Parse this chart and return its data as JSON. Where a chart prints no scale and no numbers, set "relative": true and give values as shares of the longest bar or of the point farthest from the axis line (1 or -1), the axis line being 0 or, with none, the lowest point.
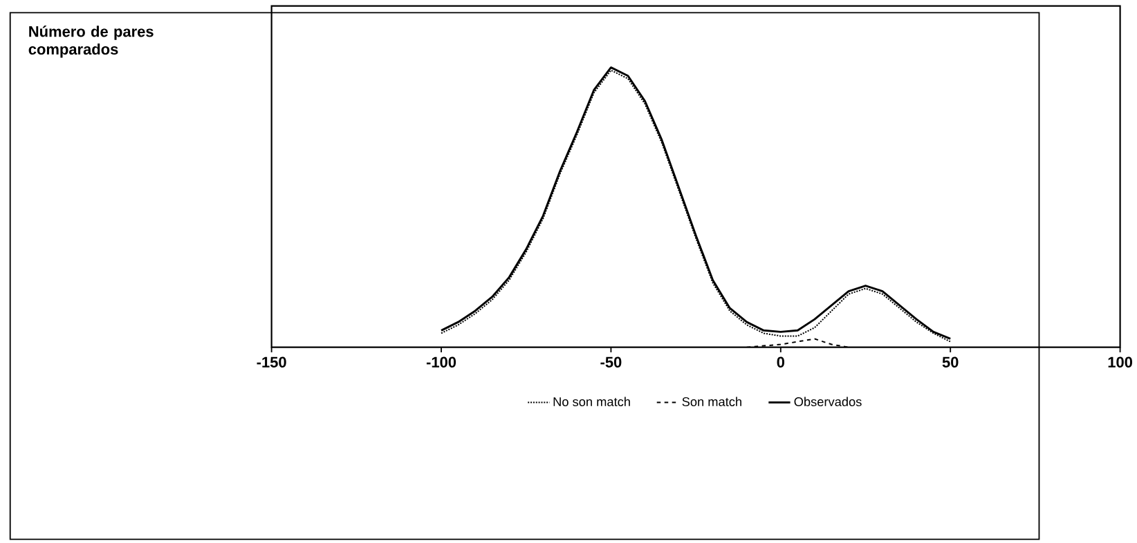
{
  "chart_data": {
    "type": "line",
    "title": "Número de pares comparados",
    "relative": true,
    "xlim": [
      -150,
      100
    ],
    "xticks": [
      -150,
      -100,
      -50,
      0,
      50,
      100
    ],
    "legend": "bottom",
    "grid": false,
    "marker": "none",
    "x": [
      -100,
      -95,
      -90,
      -85,
      -80,
      -75,
      -70,
      -65,
      -60,
      -55,
      -50,
      -45,
      -40,
      -35,
      -30,
      -25,
      -20,
      -15,
      -10,
      -5,
      0,
      5,
      10,
      15,
      20,
      25,
      30,
      35,
      40,
      45,
      50
    ],
    "series": [
      {
        "name": "No son match",
        "color": "#000000",
        "line_style": "dotted",
        "values": [
          0.05,
          0.08,
          0.12,
          0.17,
          0.24,
          0.34,
          0.46,
          0.62,
          0.76,
          0.91,
          0.99,
          0.96,
          0.87,
          0.73,
          0.56,
          0.39,
          0.23,
          0.13,
          0.08,
          0.05,
          0.04,
          0.04,
          0.07,
          0.13,
          0.19,
          0.21,
          0.19,
          0.14,
          0.09,
          0.05,
          0.02
        ]
      },
      {
        "name": "Son match",
        "color": "#000000",
        "line_style": "dashed",
        "x": [
          -10,
          -5,
          0,
          5,
          10,
          15,
          20
        ],
        "values": [
          0,
          0.005,
          0.01,
          0.02,
          0.03,
          0.01,
          0
        ]
      },
      {
        "name": "Observados",
        "color": "#000000",
        "line_style": "solid",
        "values": [
          0.06,
          0.09,
          0.13,
          0.18,
          0.25,
          0.35,
          0.47,
          0.63,
          0.77,
          0.92,
          1.0,
          0.97,
          0.88,
          0.74,
          0.57,
          0.4,
          0.24,
          0.14,
          0.09,
          0.06,
          0.055,
          0.06,
          0.1,
          0.15,
          0.2,
          0.22,
          0.2,
          0.15,
          0.1,
          0.055,
          0.03
        ]
      }
    ]
  }
}
